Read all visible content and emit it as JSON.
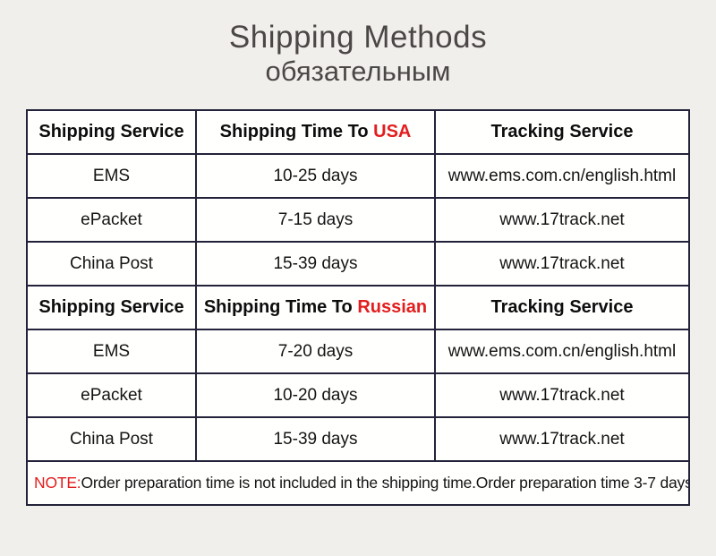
{
  "page": {
    "title": "Shipping Methods",
    "subtitle": "обязательным"
  },
  "colors": {
    "background": "#f1efec",
    "cell_background": "#fffffe",
    "table_border": "#22223a",
    "highlight_red": "#e21e1e",
    "title_gray": "#4c4747",
    "text": "#141414"
  },
  "table": {
    "sections": [
      {
        "header": {
          "service": "Shipping Service",
          "time_prefix": "Shipping Time To",
          "time_destination": "USA",
          "tracking": "Tracking Service"
        },
        "rows": [
          {
            "service": "EMS",
            "time": "10-25 days",
            "tracking": "www.ems.com.cn/english.html"
          },
          {
            "service": "ePacket",
            "time": "7-15 days",
            "tracking": "www.17track.net"
          },
          {
            "service": "China Post",
            "time": "15-39 days",
            "tracking": "www.17track.net"
          }
        ]
      },
      {
        "header": {
          "service": "Shipping Service",
          "time_prefix": "Shipping Time To",
          "time_destination": "Russian",
          "tracking": "Tracking Service"
        },
        "rows": [
          {
            "service": "EMS",
            "time": "7-20 days",
            "tracking": "www.ems.com.cn/english.html"
          },
          {
            "service": "ePacket",
            "time": "10-20 days",
            "tracking": "www.17track.net"
          },
          {
            "service": "China Post",
            "time": "15-39 days",
            "tracking": "www.17track.net"
          }
        ]
      }
    ],
    "note": {
      "label": "NOTE:",
      "text": "Order preparation time is not included in the shipping time.Order preparation time 3-7 days"
    }
  }
}
